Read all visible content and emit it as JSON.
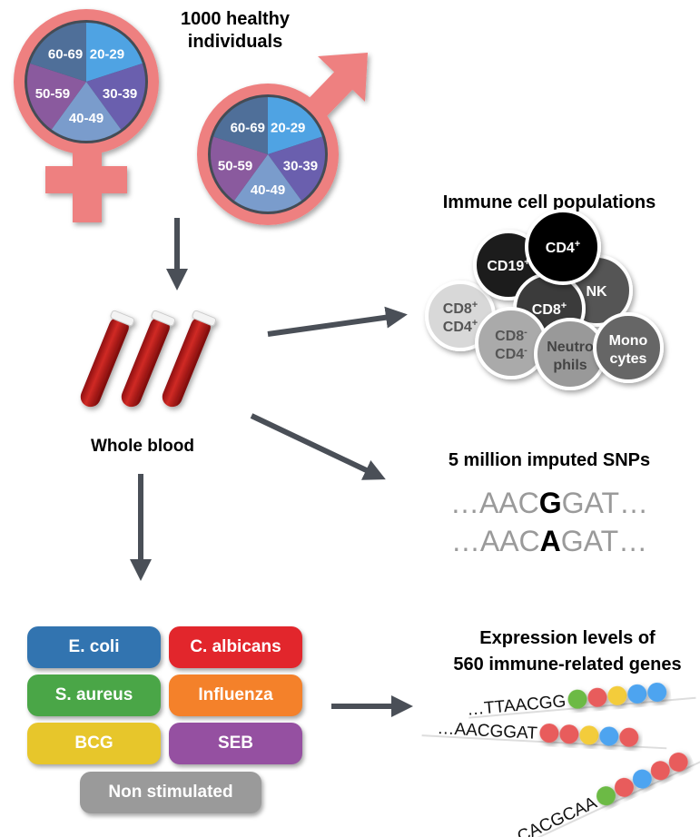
{
  "title": "1000 healthy individuals",
  "title_line1": "1000 healthy",
  "title_line2": "individuals",
  "age_groups": [
    "20-29",
    "30-39",
    "40-49",
    "50-59",
    "60-69"
  ],
  "age_colors": [
    "#4fa3e3",
    "#6a5fae",
    "#7a9ccc",
    "#8a5a9e",
    "#4f6f99"
  ],
  "symbol_color": "#ee8080",
  "arrow_color": "#4a4f57",
  "whole_blood_label": "Whole blood",
  "immune": {
    "title": "Immune cell populations",
    "cells": [
      {
        "l1": "CD19",
        "s1": "+",
        "l2": "",
        "s2": ""
      },
      {
        "l1": "CD4",
        "s1": "+",
        "l2": "",
        "s2": ""
      },
      {
        "l1": "NK",
        "s1": "",
        "l2": "",
        "s2": ""
      },
      {
        "l1": "CD8",
        "s1": "+",
        "l2": "",
        "s2": ""
      },
      {
        "l1": "CD8",
        "s1": "+",
        "l2": "CD4",
        "s2": "+"
      },
      {
        "l1": "CD8",
        "s1": "-",
        "l2": "CD4",
        "s2": "-"
      },
      {
        "l1": "Neutro",
        "s1": "",
        "l2": "phils",
        "s2": ""
      },
      {
        "l1": "Mono",
        "s1": "",
        "l2": "cytes",
        "s2": ""
      }
    ]
  },
  "snps": {
    "title": "5 million imputed SNPs",
    "rows": [
      {
        "pre": "…AAC",
        "allele": "G",
        "post": "GAT…"
      },
      {
        "pre": "…AAC",
        "allele": "A",
        "post": "GAT…"
      }
    ]
  },
  "stimuli": [
    {
      "label": "E. coli",
      "color": "#3274b0"
    },
    {
      "label": "C. albicans",
      "color": "#e2262c"
    },
    {
      "label": "S. aureus",
      "color": "#4aa647"
    },
    {
      "label": "Influenza",
      "color": "#f4812a"
    },
    {
      "label": "BCG",
      "color": "#e7c62b"
    },
    {
      "label": "SEB",
      "color": "#9550a1"
    },
    {
      "label": "Non stimulated",
      "color": "#9a9a9a"
    }
  ],
  "expression": {
    "title_line1": "Expression levels of",
    "title_line2": "560 immune-related genes",
    "rows": [
      {
        "seq": "…TTAACGG",
        "beads": [
          "#6cba45",
          "#e85c5c",
          "#f3cc3a",
          "#4ea4f0",
          "#4ea4f0"
        ]
      },
      {
        "seq": "…AACGGAT",
        "beads": [
          "#e85c5c",
          "#e85c5c",
          "#f3cc3a",
          "#4ea4f0",
          "#e85c5c"
        ]
      },
      {
        "seq": "…CACGCAA",
        "beads": [
          "#6cba45",
          "#e85c5c",
          "#4ea4f0",
          "#e85c5c",
          "#e85c5c"
        ]
      }
    ]
  }
}
